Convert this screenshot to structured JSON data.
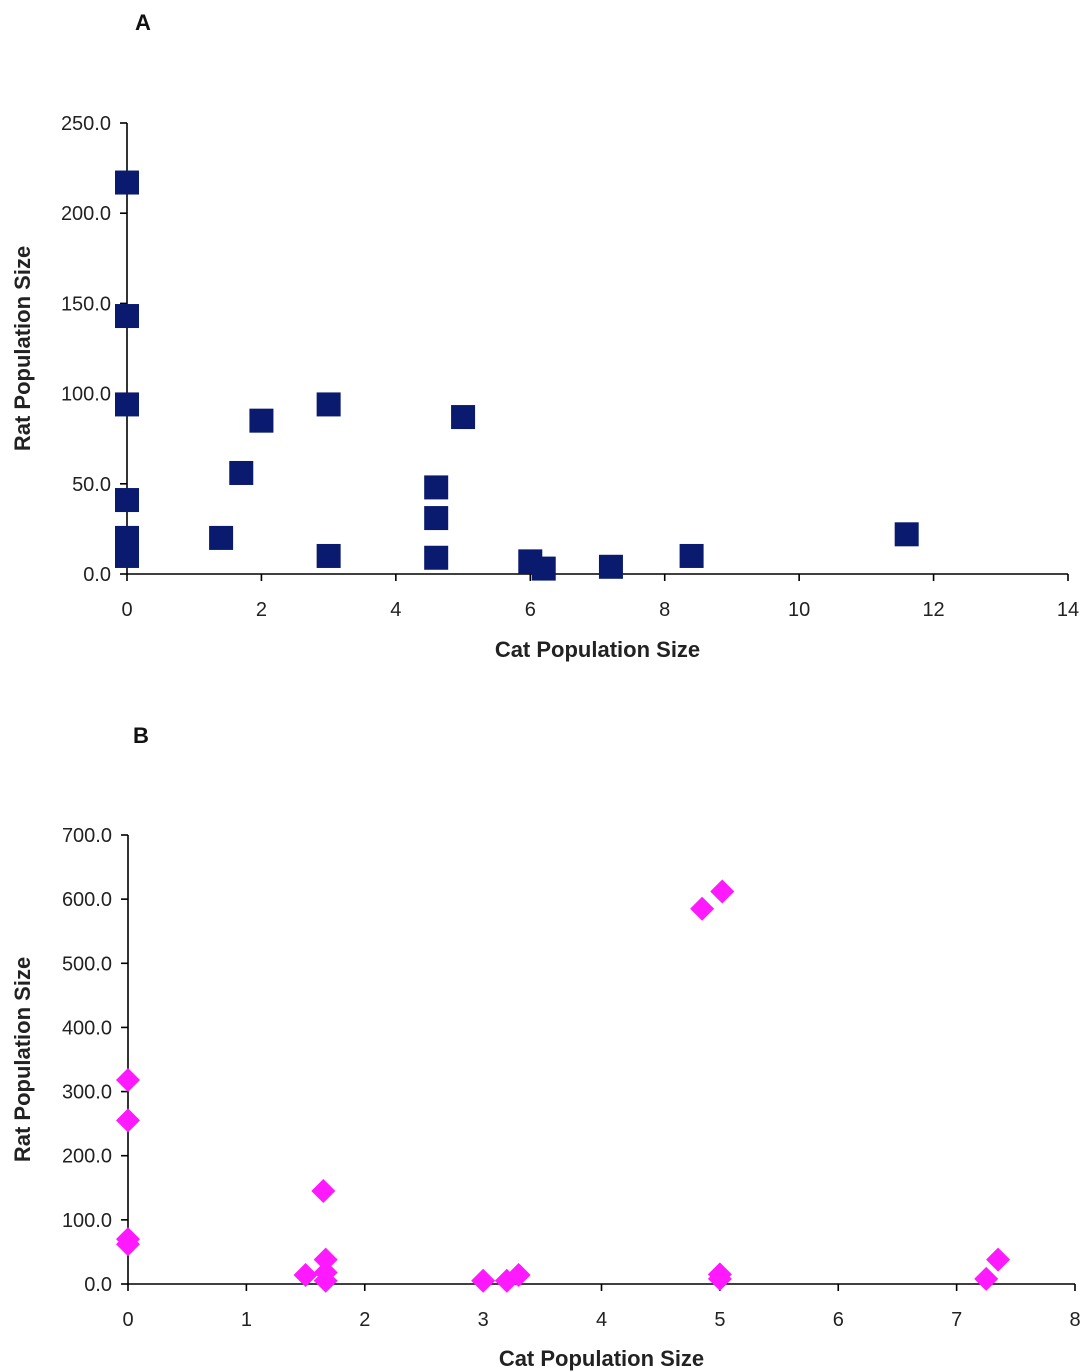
{
  "chart_data": [
    {
      "type": "scatter",
      "panel_label": "A",
      "xlabel": "Cat Population Size",
      "ylabel": "Rat Population Size",
      "xlim": [
        0,
        14
      ],
      "ylim": [
        0,
        250
      ],
      "xticks": [
        "0",
        "2",
        "4",
        "6",
        "8",
        "10",
        "12",
        "14"
      ],
      "yticks": [
        "0.0",
        "50.0",
        "100.0",
        "150.0",
        "200.0",
        "250.0"
      ],
      "marker": "square",
      "color": "#0a1a6e",
      "points": [
        {
          "x": 0,
          "y": 217
        },
        {
          "x": 0,
          "y": 143
        },
        {
          "x": 0,
          "y": 94
        },
        {
          "x": 0,
          "y": 41
        },
        {
          "x": 0,
          "y": 20
        },
        {
          "x": 0,
          "y": 10
        },
        {
          "x": 1.4,
          "y": 20
        },
        {
          "x": 1.7,
          "y": 56
        },
        {
          "x": 2.0,
          "y": 85
        },
        {
          "x": 3.0,
          "y": 94
        },
        {
          "x": 3.0,
          "y": 10
        },
        {
          "x": 4.6,
          "y": 48
        },
        {
          "x": 4.6,
          "y": 31
        },
        {
          "x": 4.6,
          "y": 9
        },
        {
          "x": 5.0,
          "y": 87
        },
        {
          "x": 6.0,
          "y": 7
        },
        {
          "x": 6.2,
          "y": 3
        },
        {
          "x": 7.2,
          "y": 4
        },
        {
          "x": 8.4,
          "y": 10
        },
        {
          "x": 11.6,
          "y": 22
        }
      ]
    },
    {
      "type": "scatter",
      "panel_label": "B",
      "xlabel": "Cat Population Size",
      "ylabel": "Rat Population Size",
      "xlim": [
        0,
        8
      ],
      "ylim": [
        0,
        700
      ],
      "xticks": [
        "0",
        "1",
        "2",
        "3",
        "4",
        "5",
        "6",
        "7",
        "8"
      ],
      "yticks": [
        "0.0",
        "100.0",
        "200.0",
        "300.0",
        "400.0",
        "500.0",
        "600.0",
        "700.0"
      ],
      "marker": "diamond",
      "color": "#ff19ff",
      "points": [
        {
          "x": 0,
          "y": 318
        },
        {
          "x": 0,
          "y": 255
        },
        {
          "x": 0,
          "y": 70
        },
        {
          "x": 0,
          "y": 62
        },
        {
          "x": 1.5,
          "y": 14
        },
        {
          "x": 1.65,
          "y": 145
        },
        {
          "x": 1.67,
          "y": 38
        },
        {
          "x": 1.67,
          "y": 18
        },
        {
          "x": 1.67,
          "y": 5
        },
        {
          "x": 3.0,
          "y": 5
        },
        {
          "x": 3.2,
          "y": 5
        },
        {
          "x": 3.3,
          "y": 14
        },
        {
          "x": 4.85,
          "y": 585
        },
        {
          "x": 5.02,
          "y": 612
        },
        {
          "x": 5.0,
          "y": 15
        },
        {
          "x": 5.0,
          "y": 8
        },
        {
          "x": 7.25,
          "y": 8
        },
        {
          "x": 7.35,
          "y": 38
        }
      ]
    }
  ]
}
